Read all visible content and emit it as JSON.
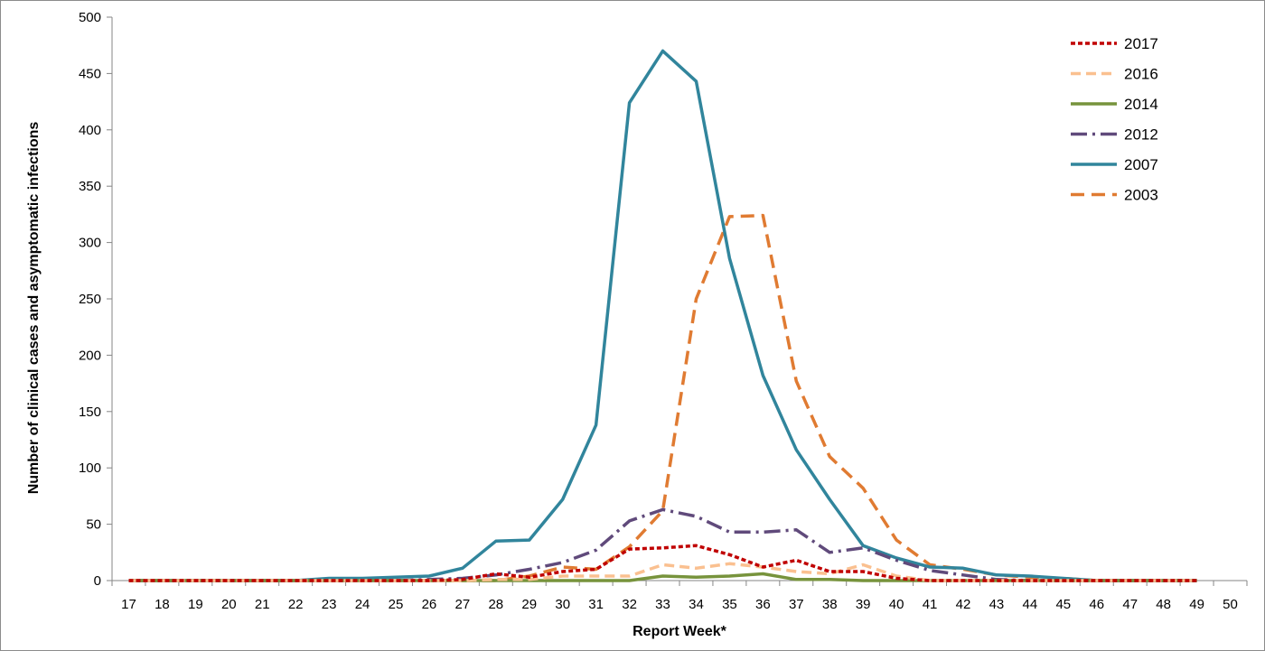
{
  "chart_data": {
    "type": "line",
    "title": "",
    "xlabel": "Report Week*",
    "ylabel": "Number of clinical cases and asymptomatic infections",
    "ylim": [
      0,
      500
    ],
    "yticks": [
      "0",
      "50",
      "100",
      "150",
      "200",
      "250",
      "300",
      "350",
      "400",
      "450",
      "500"
    ],
    "categories": [
      "17",
      "18",
      "19",
      "20",
      "21",
      "22",
      "23",
      "24",
      "25",
      "26",
      "27",
      "28",
      "29",
      "30",
      "31",
      "32",
      "33",
      "34",
      "35",
      "36",
      "37",
      "38",
      "39",
      "40",
      "41",
      "42",
      "43",
      "44",
      "45",
      "46",
      "47",
      "48",
      "49",
      "50"
    ],
    "legend_position": "top-right",
    "series": [
      {
        "name": "2017",
        "color": "#c00000",
        "dash": "dot",
        "values": [
          0,
          0,
          0,
          0,
          0,
          0,
          0,
          0,
          0,
          0,
          1,
          6,
          3,
          8,
          10,
          28,
          29,
          31,
          23,
          12,
          18,
          8,
          8,
          2,
          0,
          0,
          0,
          0,
          0,
          0,
          0,
          0,
          0,
          null
        ]
      },
      {
        "name": "2016",
        "color": "#fac090",
        "dash": "dash",
        "values": [
          0,
          0,
          0,
          0,
          0,
          0,
          0,
          0,
          0,
          0,
          0,
          1,
          1,
          4,
          4,
          4,
          14,
          11,
          15,
          12,
          8,
          6,
          14,
          4,
          0,
          0,
          0,
          0,
          0,
          0,
          0,
          0,
          0,
          null
        ]
      },
      {
        "name": "2014",
        "color": "#77933c",
        "dash": "solid",
        "values": [
          0,
          0,
          0,
          0,
          0,
          0,
          0,
          0,
          0,
          0,
          0,
          0,
          0,
          0,
          0,
          0,
          4,
          3,
          4,
          6,
          1,
          1,
          0,
          0,
          0,
          0,
          0,
          0,
          0,
          0,
          0,
          0,
          0,
          null
        ]
      },
      {
        "name": "2012",
        "color": "#604a7b",
        "dash": "dashdot",
        "values": [
          0,
          0,
          0,
          0,
          0,
          0,
          0,
          0,
          0,
          1,
          2,
          5,
          10,
          16,
          27,
          53,
          63,
          57,
          43,
          43,
          45,
          25,
          29,
          18,
          9,
          5,
          1,
          0,
          0,
          0,
          0,
          0,
          0,
          null
        ]
      },
      {
        "name": "2007",
        "color": "#31859c",
        "dash": "solid",
        "values": [
          0,
          0,
          0,
          0,
          0,
          0,
          2,
          2,
          3,
          4,
          11,
          35,
          36,
          72,
          138,
          424,
          470,
          443,
          286,
          182,
          116,
          72,
          31,
          20,
          12,
          11,
          5,
          4,
          2,
          0,
          0,
          0,
          0,
          null
        ]
      },
      {
        "name": "2003",
        "color": "#e07b32",
        "dash": "longdash",
        "values": [
          0,
          0,
          0,
          0,
          0,
          0,
          0,
          0,
          0,
          0,
          0,
          0,
          4,
          12,
          10,
          30,
          62,
          250,
          323,
          324,
          177,
          110,
          82,
          36,
          14,
          10,
          5,
          3,
          2,
          0,
          0,
          0,
          0,
          null
        ]
      }
    ]
  }
}
